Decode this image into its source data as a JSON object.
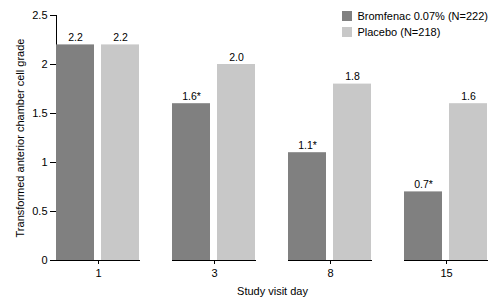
{
  "chart_data": {
    "type": "bar",
    "x_label": "Study visit day",
    "y_label": "Transformed anterior chamber cell grade",
    "categories": [
      "1",
      "3",
      "8",
      "15"
    ],
    "series": [
      {
        "name": "Bromfenac 0.07% (N=222)",
        "color": "#808080",
        "values": [
          2.2,
          1.6,
          1.1,
          0.7
        ],
        "value_labels": [
          "2.2",
          "1.6*",
          "1.1*",
          "0.7*"
        ]
      },
      {
        "name": "Placebo (N=218)",
        "color": "#c8c8c8",
        "values": [
          2.2,
          2.0,
          1.8,
          1.6
        ],
        "value_labels": [
          "2.2",
          "2.0",
          "1.8",
          "1.6"
        ]
      }
    ],
    "ylim": [
      0,
      2.5
    ],
    "yticks": [
      0,
      0.5,
      1,
      1.5,
      2,
      2.5
    ],
    "grid": false,
    "legend": "top-right",
    "data_labels": true
  }
}
